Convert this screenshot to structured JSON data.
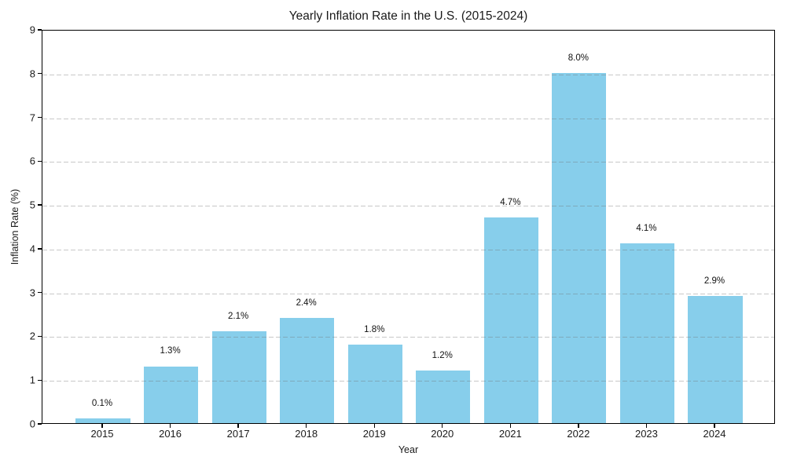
{
  "chart_data": {
    "type": "bar",
    "title": "Yearly Inflation Rate in the U.S. (2015-2024)",
    "xlabel": "Year",
    "ylabel": "Inflation Rate (%)",
    "categories": [
      "2015",
      "2016",
      "2017",
      "2018",
      "2019",
      "2020",
      "2021",
      "2022",
      "2023",
      "2024"
    ],
    "values": [
      0.1,
      1.3,
      2.1,
      2.4,
      1.8,
      1.2,
      4.7,
      8.0,
      4.1,
      2.9
    ],
    "bar_labels": [
      "0.1%",
      "1.3%",
      "2.1%",
      "2.4%",
      "1.8%",
      "1.2%",
      "4.7%",
      "8.0%",
      "4.1%",
      "2.9%"
    ],
    "y_ticks": [
      "0",
      "1",
      "2",
      "3",
      "4",
      "5",
      "6",
      "7",
      "8",
      "9"
    ],
    "ylim": [
      0,
      9
    ],
    "bar_color": "#87CEEB",
    "grid": "horizontal-dashed",
    "legend_position": "none"
  }
}
